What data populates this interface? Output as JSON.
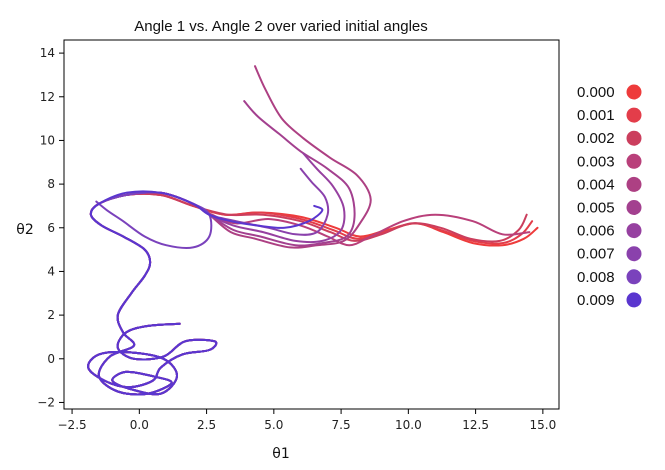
{
  "chart_data": {
    "type": "line",
    "title": "Angle 1 vs. Angle 2 over varied initial angles",
    "xlabel": "θ1",
    "ylabel": "θ2",
    "xlim": [
      -2.8,
      15.6
    ],
    "ylim": [
      -2.3,
      14.6
    ],
    "xticks": [
      "−2.5",
      "0.0",
      "2.5",
      "5.0",
      "7.5",
      "10.0",
      "12.5",
      "15.0"
    ],
    "xtick_values": [
      -2.5,
      0,
      2.5,
      5,
      7.5,
      10,
      12.5,
      15
    ],
    "yticks": [
      "−2",
      "0",
      "2",
      "4",
      "6",
      "8",
      "10",
      "12",
      "14"
    ],
    "ytick_values": [
      -2,
      0,
      2,
      4,
      6,
      8,
      10,
      12,
      14
    ],
    "grid": false,
    "legend_position": "right",
    "shared_path": [
      [
        1.5,
        1.6
      ],
      [
        0.3,
        1.5
      ],
      [
        -0.5,
        1.2
      ],
      [
        -0.8,
        0.5
      ],
      [
        -0.2,
        0.0
      ],
      [
        0.9,
        0.1
      ],
      [
        1.7,
        0.8
      ],
      [
        2.8,
        0.8
      ],
      [
        2.6,
        0.4
      ],
      [
        1.6,
        0.2
      ],
      [
        0.8,
        -0.4
      ],
      [
        0.5,
        -1.0
      ],
      [
        -0.4,
        -1.3
      ],
      [
        -1.3,
        -1.0
      ],
      [
        -1.9,
        -0.4
      ],
      [
        -1.5,
        0.2
      ],
      [
        -0.4,
        0.3
      ],
      [
        0.9,
        0.0
      ],
      [
        1.4,
        -0.8
      ],
      [
        0.8,
        -1.6
      ],
      [
        -0.3,
        -1.4
      ],
      [
        -1.0,
        -1.0
      ],
      [
        -0.5,
        -0.6
      ],
      [
        0.5,
        -0.8
      ],
      [
        1.2,
        -1.1
      ],
      [
        0.3,
        -1.6
      ],
      [
        -0.8,
        -1.5
      ],
      [
        -1.5,
        -0.8
      ],
      [
        -1.1,
        0.1
      ],
      [
        -0.2,
        0.6
      ],
      [
        -0.6,
        1.2
      ],
      [
        -0.8,
        2.0
      ],
      [
        -0.3,
        3.0
      ],
      [
        0.2,
        3.8
      ],
      [
        0.4,
        4.4
      ],
      [
        0.2,
        5.0
      ],
      [
        -0.6,
        5.6
      ],
      [
        -1.4,
        6.1
      ],
      [
        -1.8,
        6.6
      ],
      [
        -1.5,
        7.1
      ]
    ],
    "series": [
      {
        "name": "0.000",
        "color": "#ee3b3b",
        "path": [
          [
            -0.5,
            7.5
          ],
          [
            0.8,
            7.5
          ],
          [
            2.0,
            7.0
          ],
          [
            3.2,
            6.6
          ],
          [
            4.5,
            6.7
          ],
          [
            6.0,
            6.5
          ],
          [
            7.3,
            6.0
          ],
          [
            8.2,
            5.6
          ],
          [
            9.2,
            5.9
          ],
          [
            10.3,
            6.2
          ],
          [
            11.3,
            5.8
          ],
          [
            12.4,
            5.3
          ],
          [
            13.5,
            5.2
          ],
          [
            14.3,
            5.5
          ],
          [
            14.8,
            6.0
          ]
        ]
      },
      {
        "name": "0.001",
        "color": "#e33d4a",
        "path": [
          [
            -0.5,
            7.5
          ],
          [
            0.8,
            7.5
          ],
          [
            2.0,
            7.0
          ],
          [
            3.2,
            6.6
          ],
          [
            4.5,
            6.7
          ],
          [
            6.0,
            6.4
          ],
          [
            7.2,
            5.9
          ],
          [
            8.1,
            5.5
          ],
          [
            9.1,
            5.8
          ],
          [
            10.2,
            6.2
          ],
          [
            11.2,
            5.9
          ],
          [
            12.4,
            5.4
          ],
          [
            13.5,
            5.3
          ],
          [
            14.2,
            5.7
          ],
          [
            14.6,
            6.3
          ]
        ]
      },
      {
        "name": "0.002",
        "color": "#cb3e5d",
        "path": [
          [
            -0.5,
            7.5
          ],
          [
            0.8,
            7.5
          ],
          [
            2.0,
            7.0
          ],
          [
            3.3,
            6.6
          ],
          [
            4.6,
            6.6
          ],
          [
            6.0,
            6.3
          ],
          [
            7.1,
            5.8
          ],
          [
            8.0,
            5.4
          ],
          [
            9.0,
            5.7
          ],
          [
            10.1,
            6.2
          ],
          [
            11.2,
            6.0
          ],
          [
            12.3,
            5.5
          ],
          [
            13.4,
            5.4
          ],
          [
            14.1,
            5.9
          ],
          [
            14.4,
            6.6
          ]
        ]
      },
      {
        "name": "0.003",
        "color": "#b9407a",
        "path": [
          [
            -0.5,
            7.5
          ],
          [
            0.8,
            7.6
          ],
          [
            2.0,
            7.1
          ],
          [
            2.7,
            6.6
          ],
          [
            3.6,
            6.2
          ],
          [
            4.8,
            6.4
          ],
          [
            6.0,
            6.1
          ],
          [
            7.0,
            5.6
          ],
          [
            7.8,
            5.2
          ],
          [
            8.6,
            5.6
          ],
          [
            9.8,
            6.3
          ],
          [
            11.0,
            6.6
          ],
          [
            12.4,
            6.3
          ],
          [
            13.5,
            5.7
          ],
          [
            14.5,
            5.8
          ]
        ]
      },
      {
        "name": "0.004",
        "color": "#ad4083",
        "path": [
          [
            -0.5,
            7.5
          ],
          [
            0.8,
            7.6
          ],
          [
            2.0,
            7.1
          ],
          [
            2.6,
            6.6
          ],
          [
            3.4,
            5.8
          ],
          [
            4.3,
            5.5
          ],
          [
            5.6,
            5.1
          ],
          [
            6.6,
            5.2
          ],
          [
            7.6,
            5.4
          ],
          [
            8.2,
            6.2
          ],
          [
            8.6,
            7.3
          ],
          [
            8.1,
            8.4
          ],
          [
            7.1,
            9.2
          ],
          [
            6.1,
            10.1
          ],
          [
            5.3,
            11.0
          ],
          [
            4.7,
            12.3
          ],
          [
            4.3,
            13.4
          ]
        ]
      },
      {
        "name": "0.005",
        "color": "#a3408f",
        "path": [
          [
            -0.5,
            7.5
          ],
          [
            0.8,
            7.6
          ],
          [
            2.0,
            7.1
          ],
          [
            2.6,
            6.6
          ],
          [
            3.5,
            5.9
          ],
          [
            4.5,
            5.6
          ],
          [
            5.8,
            5.2
          ],
          [
            6.8,
            5.3
          ],
          [
            7.7,
            5.6
          ],
          [
            8.0,
            6.5
          ],
          [
            7.8,
            7.8
          ],
          [
            7.0,
            8.7
          ],
          [
            6.0,
            9.5
          ],
          [
            5.2,
            10.3
          ],
          [
            4.4,
            11.1
          ],
          [
            3.9,
            11.8
          ]
        ]
      },
      {
        "name": "0.006",
        "color": "#9640a0",
        "path": [
          [
            -0.5,
            7.5
          ],
          [
            0.8,
            7.6
          ],
          [
            2.0,
            7.1
          ],
          [
            2.6,
            6.6
          ],
          [
            3.5,
            6.1
          ],
          [
            4.6,
            5.8
          ],
          [
            5.8,
            5.4
          ],
          [
            6.8,
            5.4
          ],
          [
            7.5,
            5.9
          ],
          [
            7.6,
            6.9
          ],
          [
            7.2,
            7.9
          ],
          [
            6.6,
            8.7
          ],
          [
            6.1,
            9.4
          ]
        ]
      },
      {
        "name": "0.007",
        "color": "#8a41ac",
        "path": [
          [
            -0.5,
            7.5
          ],
          [
            0.8,
            7.6
          ],
          [
            2.0,
            7.1
          ],
          [
            2.6,
            6.6
          ],
          [
            3.6,
            6.3
          ],
          [
            4.8,
            6.0
          ],
          [
            5.8,
            5.7
          ],
          [
            6.6,
            5.8
          ],
          [
            7.0,
            6.6
          ],
          [
            6.9,
            7.4
          ],
          [
            6.4,
            8.1
          ],
          [
            6.0,
            8.7
          ]
        ]
      },
      {
        "name": "0.008",
        "color": "#7a42bc",
        "path": [
          [
            -0.5,
            7.5
          ],
          [
            0.8,
            7.6
          ],
          [
            2.0,
            7.1
          ],
          [
            2.6,
            6.6
          ],
          [
            2.6,
            5.6
          ],
          [
            2.0,
            5.1
          ],
          [
            1.0,
            5.2
          ],
          [
            0.2,
            5.6
          ],
          [
            -0.6,
            6.3
          ],
          [
            -1.2,
            6.8
          ],
          [
            -1.6,
            7.2
          ]
        ]
      },
      {
        "name": "0.009",
        "color": "#5a36cf",
        "path": [
          [
            -0.5,
            7.6
          ],
          [
            0.8,
            7.6
          ],
          [
            2.0,
            7.1
          ],
          [
            2.6,
            6.6
          ],
          [
            3.4,
            6.3
          ],
          [
            4.4,
            6.1
          ],
          [
            5.4,
            6.0
          ],
          [
            6.3,
            6.3
          ],
          [
            6.8,
            6.8
          ],
          [
            6.5,
            7.0
          ]
        ]
      }
    ]
  }
}
